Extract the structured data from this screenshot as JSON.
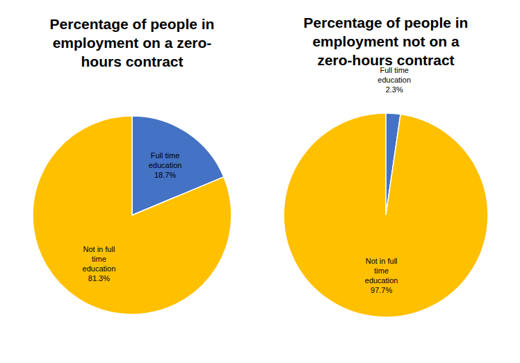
{
  "chart_data": [
    {
      "type": "pie",
      "title": "Percentage of people in employment on a zero-hours contract",
      "categories": [
        "Full time education",
        "Not in full time education"
      ],
      "values": [
        18.7,
        81.3
      ],
      "value_labels": [
        "18.7%",
        "81.3%"
      ],
      "colors": [
        "#4472c4",
        "#ffc000"
      ],
      "data_labels": true
    },
    {
      "type": "pie",
      "title": "Percentage of people in employment not on a zero-hours contract",
      "categories": [
        "Full time education",
        "Not in full time education"
      ],
      "values": [
        2.3,
        97.7
      ],
      "value_labels": [
        "2.3%",
        "97.7%"
      ],
      "colors": [
        "#4472c4",
        "#ffc000"
      ],
      "data_labels": true
    }
  ]
}
